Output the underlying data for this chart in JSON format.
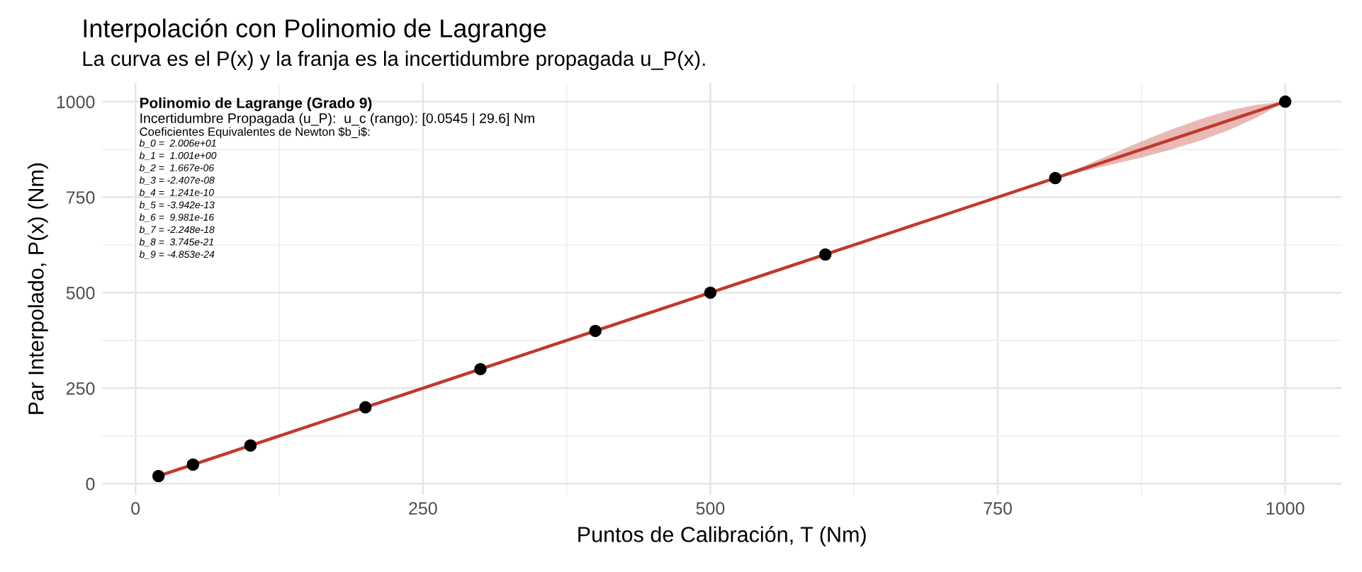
{
  "chart_data": {
    "type": "line",
    "title": "Interpolación con Polinomio de Lagrange",
    "subtitle": "La curva es el P(x) y la franja es la incertidumbre propagada u_P(x).",
    "xlabel": "Puntos de Calibración, T (Nm)",
    "ylabel": "Par Interpolado, P(x) (Nm)",
    "xlim": [
      -29,
      1049
    ],
    "ylim": [
      -29,
      1049
    ],
    "xticks": [
      0,
      250,
      500,
      750,
      1000
    ],
    "yticks": [
      0,
      250,
      500,
      750,
      1000
    ],
    "grid": true,
    "annotations": [
      "Polinomio de Lagrange (Grado 9)",
      "Incertidumbre Propagada (u_P):  u_c (rango): [0.0545 | 29.6] Nm",
      "Coeficientes Equivalentes de Newton $b_i$:",
      "b_0 =  2.006e+01",
      "b_1 =  1.001e+00",
      "b_2 =  1.667e-06",
      "b_3 = -2.407e-08",
      "b_4 =  1.241e-10",
      "b_5 = -3.942e-13",
      "b_6 =  9.981e-16",
      "b_7 = -2.248e-18",
      "b_8 =  3.745e-21",
      "b_9 = -4.853e-24"
    ],
    "series": [
      {
        "color": "#c0392b",
        "marker": "none",
        "x": [
          20,
          50,
          100,
          200,
          300,
          400,
          500,
          600,
          700,
          800,
          825,
          850,
          875,
          900,
          925,
          950,
          975,
          1000
        ],
        "values": [
          20,
          50,
          100,
          200,
          300,
          400,
          500,
          600,
          700,
          800,
          825,
          850,
          875,
          900,
          925,
          950,
          975,
          1000
        ],
        "lower": [
          20,
          50,
          100,
          200,
          300,
          400,
          500,
          600,
          700,
          799,
          818,
          836,
          854,
          874,
          897,
          924,
          958,
          1000
        ],
        "upper": [
          20,
          50,
          100,
          200,
          300,
          400,
          500,
          600,
          700,
          801,
          832,
          864,
          896,
          926,
          953,
          976,
          992,
          1000
        ]
      },
      {
        "type": "scatter",
        "color": "#000000",
        "marker": "circle",
        "x": [
          20,
          50,
          100,
          200,
          300,
          400,
          500,
          600,
          800,
          1000
        ],
        "values": [
          20,
          50,
          100,
          200,
          300,
          400,
          500,
          600,
          800,
          1000
        ]
      }
    ]
  }
}
